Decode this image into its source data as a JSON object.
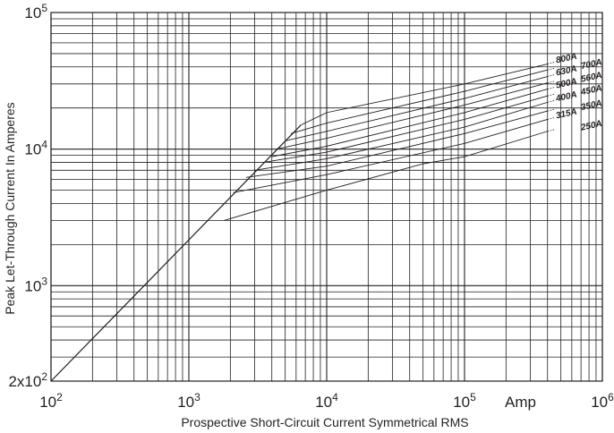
{
  "chart_data": {
    "type": "line",
    "x_scale": "log",
    "y_scale": "log",
    "xlim": [
      100,
      1000000
    ],
    "ylim": [
      200,
      100000
    ],
    "grid": true,
    "title": "",
    "xlabel": "Prospective Short-Circuit Current Symmetrical RMS",
    "ylabel": "Peak Let-Through Current In Amperes",
    "x_unit_label": "Amp",
    "x_ticks": [
      {
        "value": 100,
        "base": "10",
        "exp": "2"
      },
      {
        "value": 1000,
        "base": "10",
        "exp": "3"
      },
      {
        "value": 10000,
        "base": "10",
        "exp": "4"
      },
      {
        "value": 100000,
        "base": "10",
        "exp": "5"
      },
      {
        "value": 1000000,
        "base": "10",
        "exp": "6"
      }
    ],
    "y_ticks": [
      {
        "value": 200,
        "base": "2x10",
        "exp": "2"
      },
      {
        "value": 1000,
        "base": "10",
        "exp": "3"
      },
      {
        "value": 10000,
        "base": "10",
        "exp": "4"
      },
      {
        "value": 100000,
        "base": "10",
        "exp": "5"
      }
    ],
    "prospective_line": {
      "name": "",
      "points": [
        [
          100,
          200
        ],
        [
          6500,
          15000
        ]
      ]
    },
    "series": [
      {
        "name": "800A",
        "points": [
          [
            6500,
            15000
          ],
          [
            10000,
            18500
          ],
          [
            100000,
            30000
          ],
          [
            400000,
            42000
          ]
        ]
      },
      {
        "name": "700A",
        "points": [
          [
            5500,
            13000
          ],
          [
            10000,
            15500
          ],
          [
            100000,
            26500
          ],
          [
            400000,
            38000
          ]
        ]
      },
      {
        "name": "630A",
        "points": [
          [
            5000,
            11500
          ],
          [
            10000,
            13500
          ],
          [
            100000,
            23500
          ],
          [
            400000,
            34000
          ]
        ]
      },
      {
        "name": "560A",
        "points": [
          [
            4300,
            10000
          ],
          [
            10000,
            12000
          ],
          [
            100000,
            21000
          ],
          [
            400000,
            30500
          ]
        ]
      },
      {
        "name": "500A",
        "points": [
          [
            4000,
            8800
          ],
          [
            10000,
            10500
          ],
          [
            100000,
            18500
          ],
          [
            400000,
            27500
          ]
        ]
      },
      {
        "name": "450A",
        "points": [
          [
            3500,
            8000
          ],
          [
            10000,
            9500
          ],
          [
            100000,
            16500
          ],
          [
            400000,
            24500
          ]
        ]
      },
      {
        "name": "400A",
        "points": [
          [
            3000,
            7000
          ],
          [
            10000,
            8500
          ],
          [
            100000,
            14500
          ],
          [
            400000,
            22000
          ]
        ]
      },
      {
        "name": "350A",
        "points": [
          [
            2600,
            6200
          ],
          [
            10000,
            7500
          ],
          [
            100000,
            13000
          ],
          [
            400000,
            19000
          ]
        ]
      },
      {
        "name": "315A",
        "points": [
          [
            2100,
            4800
          ],
          [
            10000,
            6500
          ],
          [
            100000,
            11000
          ],
          [
            400000,
            16500
          ]
        ]
      },
      {
        "name": "250A",
        "points": [
          [
            1800,
            3000
          ],
          [
            10000,
            5000
          ],
          [
            50000,
            7800
          ],
          [
            100000,
            8800
          ],
          [
            400000,
            13500
          ]
        ]
      }
    ]
  }
}
